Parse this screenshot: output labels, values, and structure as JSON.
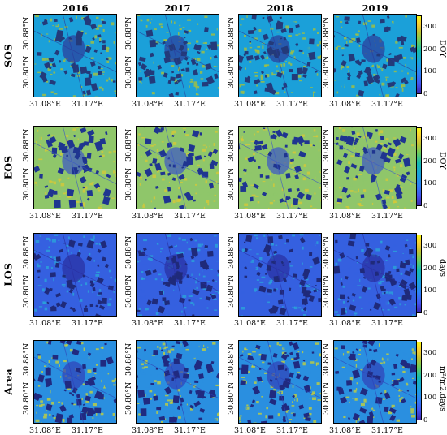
{
  "columns": [
    "2016",
    "2017",
    "2018",
    "2019"
  ],
  "rows": [
    {
      "label": "SOS",
      "unit": "DOY",
      "base": "#1ba0d9",
      "accent": "#a8c13a",
      "dark": "#2b3a9a",
      "spots": "#233a7a"
    },
    {
      "label": "EOS",
      "unit": "DOY",
      "base": "#8fc66a",
      "accent": "#d4c838",
      "dark": "#3a55c8",
      "spots": "#1f3590"
    },
    {
      "label": "LOS",
      "unit": "days",
      "base": "#3560e0",
      "accent": "#2aa4d9",
      "dark": "#2a2fa0",
      "spots": "#1f2a7a"
    },
    {
      "label": "Area",
      "unit": "m²/m2.days",
      "base": "#2a8fe0",
      "accent": "#c4d03a",
      "dark": "#3040b8",
      "spots": "#202a80"
    }
  ],
  "axes": {
    "x_ticks": [
      "31.08°E",
      "31.17°E"
    ],
    "y_ticks": [
      "30.80°N",
      "30.88°N"
    ]
  },
  "colorbar": {
    "ticks": [
      "0",
      "100",
      "200",
      "300"
    ],
    "min": 0,
    "max": 350,
    "colormap": "parula"
  },
  "chart_data": {
    "type": "heatmap",
    "description_source": "raster maps of phenology metrics, 4 years x 4 metrics",
    "years": [
      "2016",
      "2017",
      "2018",
      "2019"
    ],
    "metrics": [
      "SOS",
      "EOS",
      "LOS",
      "Area"
    ],
    "units": {
      "SOS": "DOY",
      "EOS": "DOY",
      "LOS": "days",
      "Area": "m²/m2.days"
    },
    "x_ticks": [
      "31.08°E",
      "31.17°E"
    ],
    "y_ticks": [
      "30.80°N",
      "30.88°N"
    ],
    "colorbar_range": [
      0,
      350
    ],
    "colorbar_ticks": [
      0,
      100,
      200,
      300
    ]
  }
}
